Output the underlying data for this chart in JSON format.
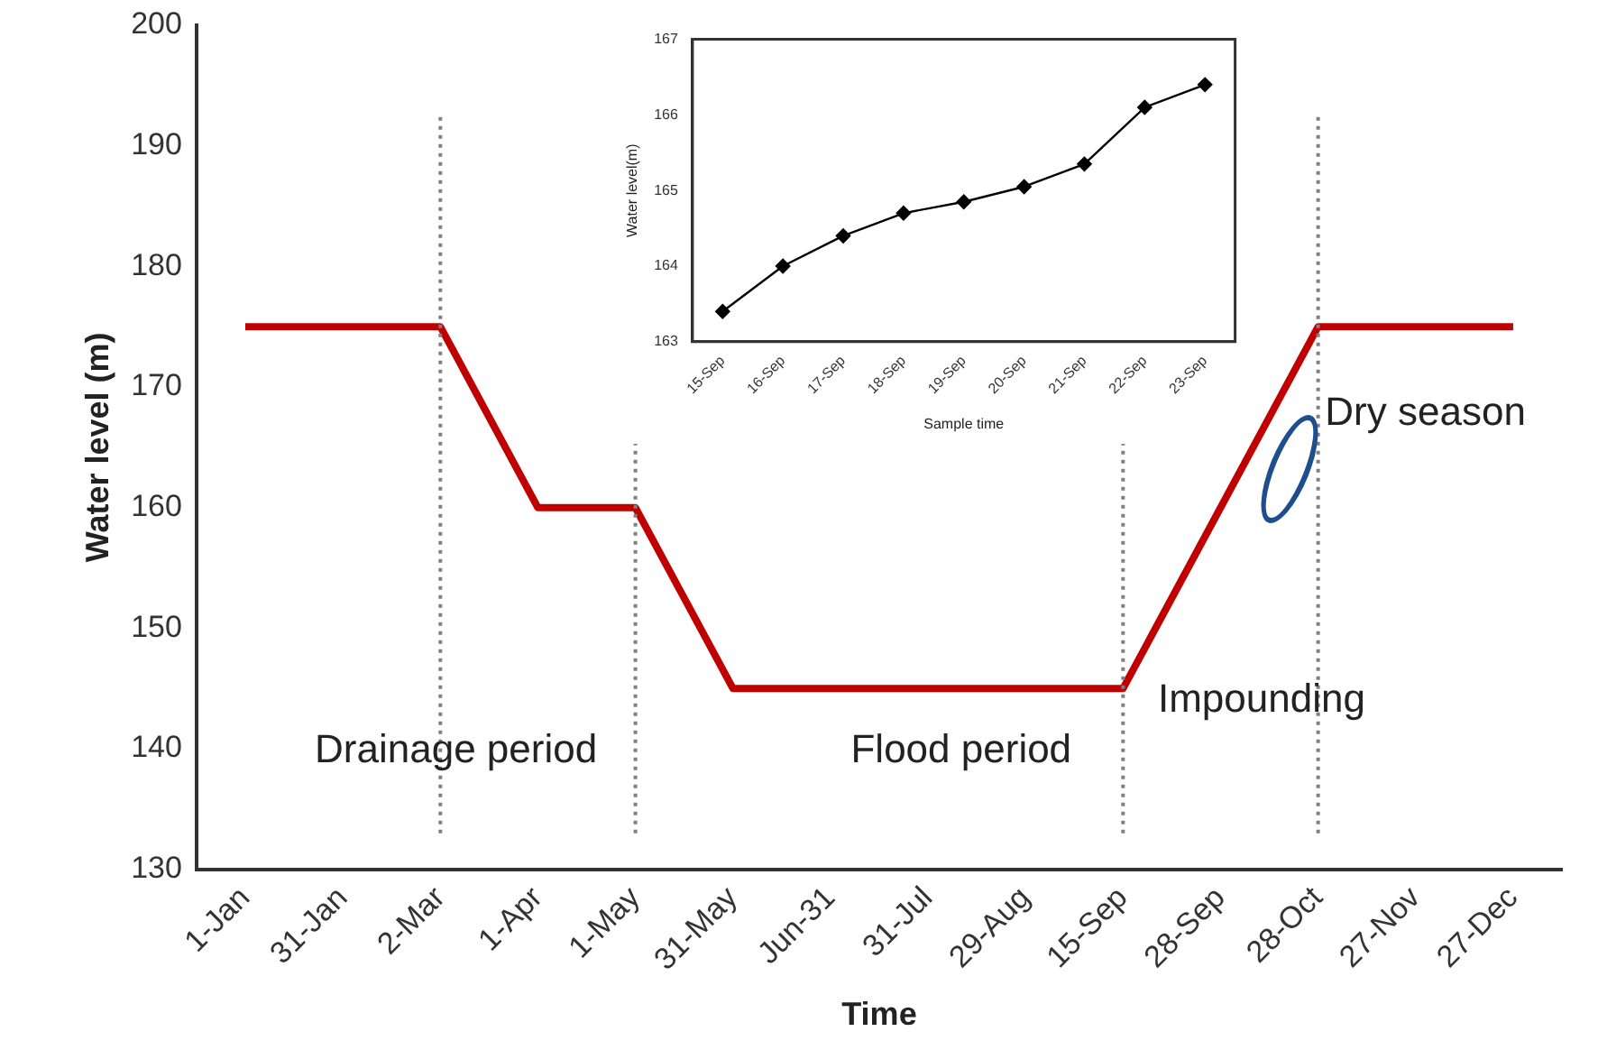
{
  "chart_data": [
    {
      "type": "line",
      "xlabel": "Time",
      "ylabel": "Water level (m)",
      "categories": [
        "1-Jan",
        "31-Jan",
        "2-Mar",
        "1-Apr",
        "1-May",
        "31-May",
        "Jun-31",
        "31-Jul",
        "29-Aug",
        "15-Sep",
        "28-Sep",
        "28-Oct",
        "27-Nov",
        "27-Dec"
      ],
      "series": [
        {
          "color": "#c00000",
          "values": [
            175,
            175,
            175,
            160,
            160,
            145,
            145,
            145,
            145,
            145,
            160,
            175,
            175,
            175
          ]
        }
      ],
      "ylim": [
        130,
        200
      ],
      "yticks": [
        130,
        140,
        150,
        160,
        170,
        180,
        190,
        200
      ],
      "grid": false,
      "legend": false,
      "marker": "none",
      "line_style": "solid",
      "ref_lines": [
        {
          "axis": "x",
          "value": "2-Mar",
          "color": "#808080",
          "line_style": "dotted"
        },
        {
          "axis": "x",
          "value": "1-May",
          "color": "#808080",
          "line_style": "dotted"
        },
        {
          "axis": "x",
          "value": "15-Sep",
          "color": "#808080",
          "line_style": "dotted"
        },
        {
          "axis": "x",
          "value": "28-Oct",
          "color": "#808080",
          "line_style": "dotted"
        }
      ],
      "annotations": [
        "Drainage period",
        "Flood period",
        "Impounding",
        "Dry season"
      ]
    },
    {
      "type": "line",
      "xlabel": "Sample time",
      "ylabel": "Water level(m)",
      "categories": [
        "15-Sep",
        "16-Sep",
        "17-Sep",
        "18-Sep",
        "19-Sep",
        "20-Sep",
        "21-Sep",
        "22-Sep",
        "23-Sep"
      ],
      "series": [
        {
          "color": "#000000",
          "values": [
            163.4,
            164.0,
            164.4,
            164.7,
            164.85,
            165.05,
            165.35,
            166.1,
            166.4
          ]
        }
      ],
      "ylim": [
        163,
        167
      ],
      "yticks": [
        163,
        164,
        165,
        166,
        167
      ],
      "grid": false,
      "legend": false,
      "marker": "diamond",
      "line_style": "solid"
    }
  ]
}
